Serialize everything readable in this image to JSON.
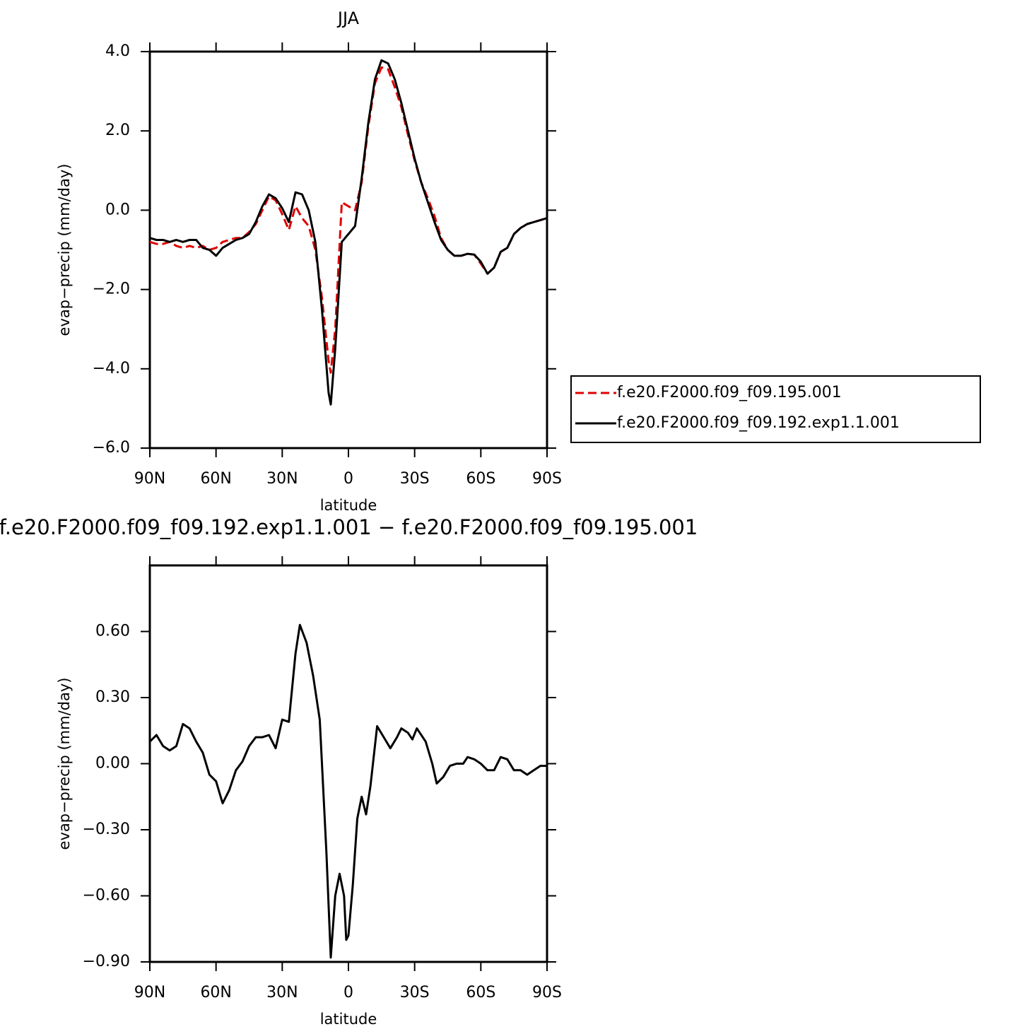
{
  "chart_data": [
    {
      "type": "line",
      "title": "JJA",
      "x_label": "latitude",
      "y_label": "evap−precip (mm/day)",
      "x": [
        90,
        87,
        84,
        81,
        78,
        75,
        72,
        69,
        66,
        63,
        60,
        57,
        54,
        51,
        48,
        45,
        42,
        39,
        36,
        33,
        30,
        27,
        24,
        21,
        18,
        15,
        12,
        9,
        8,
        6,
        3,
        0,
        -3,
        -6,
        -9,
        -12,
        -15,
        -18,
        -21,
        -24,
        -27,
        -30,
        -33,
        -36,
        -39,
        -42,
        -45,
        -48,
        -51,
        -54,
        -57,
        -60,
        -63,
        -66,
        -69,
        -72,
        -75,
        -78,
        -81,
        -84,
        -87,
        -90
      ],
      "series": [
        {
          "name": "f.e20.F2000.f09_f09.195.001",
          "color": "#e00000",
          "line_style": "dashed",
          "values": [
            -0.8,
            -0.85,
            -0.85,
            -0.8,
            -0.9,
            -0.95,
            -0.9,
            -0.95,
            -0.9,
            -1.0,
            -0.95,
            -0.8,
            -0.75,
            -0.7,
            -0.7,
            -0.55,
            -0.35,
            0.0,
            0.35,
            0.25,
            -0.1,
            -0.5,
            0.1,
            -0.2,
            -0.4,
            -1.0,
            -2.2,
            -3.8,
            -4.1,
            -3.0,
            0.2,
            0.1,
            0.0,
            0.7,
            2.1,
            3.2,
            3.6,
            3.55,
            3.1,
            2.6,
            1.9,
            1.25,
            0.7,
            0.3,
            -0.15,
            -0.7,
            -1.0,
            -1.15,
            -1.15,
            -1.1,
            -1.12,
            -1.35,
            -1.6,
            -1.45,
            -1.05,
            -0.95,
            -0.6,
            -0.45,
            -0.35,
            -0.3,
            -0.25,
            -0.2
          ]
        },
        {
          "name": "f.e20.F2000.f09_f09.192.exp1.1.001",
          "color": "#000000",
          "line_style": "solid",
          "values": [
            -0.7,
            -0.75,
            -0.75,
            -0.8,
            -0.75,
            -0.8,
            -0.75,
            -0.75,
            -0.95,
            -1.0,
            -1.15,
            -0.95,
            -0.85,
            -0.75,
            -0.7,
            -0.6,
            -0.3,
            0.1,
            0.4,
            0.3,
            0.05,
            -0.3,
            0.45,
            0.4,
            0.0,
            -0.8,
            -2.5,
            -4.6,
            -4.9,
            -3.5,
            -0.8,
            -0.6,
            -0.4,
            0.8,
            2.2,
            3.3,
            3.78,
            3.7,
            3.3,
            2.7,
            2.0,
            1.3,
            0.7,
            0.2,
            -0.3,
            -0.75,
            -1.0,
            -1.15,
            -1.15,
            -1.1,
            -1.12,
            -1.3,
            -1.6,
            -1.45,
            -1.05,
            -0.95,
            -0.6,
            -0.45,
            -0.35,
            -0.3,
            -0.25,
            -0.2
          ]
        }
      ],
      "xlim": [
        90,
        -90
      ],
      "xticks": [
        {
          "value": 90,
          "label": "90N"
        },
        {
          "value": 60,
          "label": "60N"
        },
        {
          "value": 30,
          "label": "30N"
        },
        0,
        {
          "value": -30,
          "label": "30S"
        },
        {
          "value": -60,
          "label": "60S"
        },
        {
          "value": -90,
          "label": "90S"
        }
      ],
      "ylim": [
        -6,
        4
      ],
      "yticks": [
        {
          "value": 4,
          "label": "4.0"
        },
        {
          "value": 2,
          "label": "2.0"
        },
        {
          "value": 0,
          "label": "0.0"
        },
        {
          "value": -2,
          "label": "−2.0"
        },
        {
          "value": -4,
          "label": "−4.0"
        },
        {
          "value": -6,
          "label": "−6.0"
        }
      ],
      "legend": "outside right",
      "grid": false
    },
    {
      "type": "line",
      "title": "f.e20.F2000.f09_f09.192.exp1.1.001 − f.e20.F2000.f09_f09.195.001",
      "x_label": "latitude",
      "y_label": "evap−precip (mm/day)",
      "x": [
        90,
        87,
        84,
        81,
        78,
        75,
        72,
        69,
        66,
        63,
        60,
        57,
        54,
        51,
        48,
        45,
        42,
        39,
        36,
        33,
        30,
        27,
        24,
        22,
        19,
        16,
        13,
        10,
        8,
        6,
        4,
        2,
        1,
        0,
        -2,
        -4,
        -6,
        -8,
        -10,
        -13,
        -16,
        -19,
        -22,
        -24,
        -27,
        -29,
        -31,
        -35,
        -38,
        -40,
        -43,
        -46,
        -49,
        -52,
        -54,
        -57,
        -60,
        -63,
        -66,
        -69,
        -72,
        -75,
        -78,
        -81,
        -84,
        -87,
        -90
      ],
      "values": [
        0.1,
        0.13,
        0.08,
        0.06,
        0.08,
        0.18,
        0.16,
        0.1,
        0.05,
        -0.05,
        -0.08,
        -0.18,
        -0.12,
        -0.03,
        0.01,
        0.08,
        0.12,
        0.12,
        0.13,
        0.07,
        0.2,
        0.19,
        0.5,
        0.63,
        0.55,
        0.4,
        0.2,
        -0.4,
        -0.88,
        -0.6,
        -0.5,
        -0.6,
        -0.8,
        -0.78,
        -0.55,
        -0.25,
        -0.15,
        -0.23,
        -0.1,
        0.17,
        0.12,
        0.07,
        0.12,
        0.16,
        0.14,
        0.11,
        0.16,
        0.1,
        0.0,
        -0.09,
        -0.06,
        -0.01,
        0.0,
        0.0,
        0.03,
        0.02,
        0.0,
        -0.03,
        -0.03,
        0.03,
        0.02,
        -0.03,
        -0.03,
        -0.05,
        -0.03,
        -0.01,
        -0.01
      ],
      "color": "#000000",
      "xlim": [
        90,
        -90
      ],
      "xticks": [
        {
          "value": 90,
          "label": "90N"
        },
        {
          "value": 60,
          "label": "60N"
        },
        {
          "value": 30,
          "label": "30N"
        },
        0,
        {
          "value": -30,
          "label": "30S"
        },
        {
          "value": -60,
          "label": "60S"
        },
        {
          "value": -90,
          "label": "90S"
        }
      ],
      "ylim": [
        -0.9,
        0.9
      ],
      "yticks": [
        {
          "value": 0.6,
          "label": "0.60"
        },
        {
          "value": 0.3,
          "label": "0.30"
        },
        {
          "value": 0,
          "label": "0.00"
        },
        {
          "value": -0.3,
          "label": "−0.30"
        },
        {
          "value": -0.6,
          "label": "−0.60"
        },
        {
          "value": -0.9,
          "label": "−0.90"
        }
      ],
      "grid": false
    }
  ]
}
